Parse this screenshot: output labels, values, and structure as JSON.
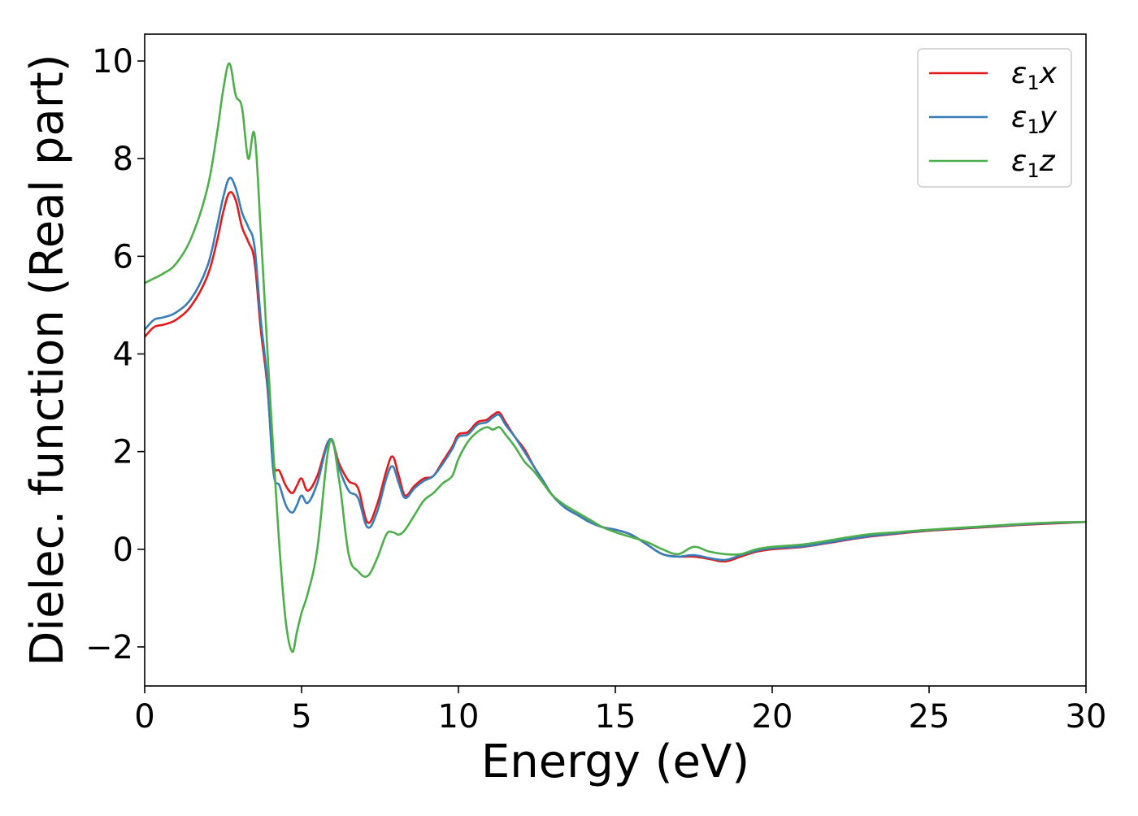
{
  "chart_data": {
    "type": "line",
    "title": "",
    "xlabel": "Energy (eV)",
    "ylabel": "Dielec. function (Real part)",
    "xlim": [
      0,
      30
    ],
    "ylim": [
      -2.8,
      10.55
    ],
    "xticks": [
      0,
      5,
      10,
      15,
      20,
      25,
      30
    ],
    "xtick_labels": [
      "0",
      "5",
      "10",
      "15",
      "20",
      "25",
      "30"
    ],
    "yticks": [
      -2,
      0,
      2,
      4,
      6,
      8,
      10
    ],
    "ytick_labels": [
      "−2",
      "0",
      "2",
      "4",
      "6",
      "8",
      "10"
    ],
    "grid": false,
    "legend_position": "top-right",
    "series": [
      {
        "name": "ε₁x",
        "symbol": "ε",
        "subscript": "1",
        "component": "x",
        "color": "#e41a1c",
        "x": [
          0,
          0.3,
          0.6,
          1.0,
          1.5,
          2.0,
          2.3,
          2.5,
          2.7,
          2.9,
          3.1,
          3.3,
          3.5,
          3.7,
          3.9,
          4.1,
          4.3,
          4.5,
          4.7,
          4.85,
          5.0,
          5.2,
          5.5,
          5.9,
          6.2,
          6.5,
          6.8,
          7.1,
          7.4,
          7.7,
          7.9,
          8.1,
          8.3,
          8.6,
          8.9,
          9.2,
          9.5,
          9.8,
          10.0,
          10.3,
          10.6,
          10.9,
          11.1,
          11.3,
          11.5,
          11.8,
          12.1,
          12.4,
          12.7,
          13.0,
          13.4,
          13.8,
          14.2,
          14.6,
          15.0,
          15.5,
          16.0,
          16.5,
          17.0,
          17.5,
          18.0,
          18.5,
          19.0,
          19.5,
          20.0,
          21.0,
          22.0,
          23.0,
          24.0,
          25.0,
          26.0,
          27.0,
          28.0,
          29.0,
          30.0
        ],
        "y": [
          4.35,
          4.55,
          4.6,
          4.7,
          5.0,
          5.6,
          6.3,
          6.9,
          7.3,
          7.15,
          6.6,
          6.3,
          5.9,
          4.5,
          3.4,
          1.8,
          1.6,
          1.3,
          1.15,
          1.3,
          1.45,
          1.2,
          1.5,
          2.25,
          1.75,
          1.4,
          1.25,
          0.55,
          0.9,
          1.6,
          1.9,
          1.5,
          1.1,
          1.3,
          1.45,
          1.5,
          1.8,
          2.1,
          2.35,
          2.4,
          2.6,
          2.65,
          2.75,
          2.8,
          2.6,
          2.3,
          2.05,
          1.7,
          1.4,
          1.1,
          0.85,
          0.7,
          0.55,
          0.45,
          0.4,
          0.3,
          0.1,
          -0.1,
          -0.15,
          -0.15,
          -0.2,
          -0.25,
          -0.15,
          -0.05,
          0.0,
          0.05,
          0.15,
          0.25,
          0.32,
          0.38,
          0.42,
          0.46,
          0.5,
          0.53,
          0.56
        ]
      },
      {
        "name": "ε₁y",
        "symbol": "ε",
        "subscript": "1",
        "component": "y",
        "color": "#377eb8",
        "x": [
          0,
          0.3,
          0.6,
          1.0,
          1.5,
          2.0,
          2.3,
          2.5,
          2.7,
          2.9,
          3.1,
          3.3,
          3.5,
          3.7,
          3.9,
          4.1,
          4.3,
          4.5,
          4.7,
          4.85,
          5.0,
          5.2,
          5.5,
          5.9,
          6.2,
          6.5,
          6.8,
          7.1,
          7.4,
          7.7,
          7.9,
          8.1,
          8.3,
          8.6,
          8.9,
          9.2,
          9.5,
          9.8,
          10.0,
          10.3,
          10.6,
          10.9,
          11.1,
          11.3,
          11.5,
          11.8,
          12.1,
          12.4,
          12.7,
          13.0,
          13.4,
          13.8,
          14.2,
          14.6,
          15.0,
          15.5,
          16.0,
          16.5,
          17.0,
          17.5,
          18.0,
          18.5,
          19.0,
          19.5,
          20.0,
          21.0,
          22.0,
          23.0,
          24.0,
          25.0,
          26.0,
          27.0,
          28.0,
          29.0,
          30.0
        ],
        "y": [
          4.5,
          4.7,
          4.75,
          4.85,
          5.15,
          5.8,
          6.6,
          7.2,
          7.6,
          7.4,
          6.9,
          6.6,
          6.2,
          4.7,
          3.5,
          1.6,
          1.3,
          0.9,
          0.75,
          0.9,
          1.1,
          0.95,
          1.35,
          2.25,
          1.65,
          1.2,
          1.05,
          0.45,
          0.75,
          1.45,
          1.7,
          1.35,
          1.05,
          1.25,
          1.4,
          1.5,
          1.75,
          2.05,
          2.3,
          2.35,
          2.55,
          2.6,
          2.7,
          2.75,
          2.55,
          2.3,
          2.0,
          1.7,
          1.4,
          1.1,
          0.85,
          0.7,
          0.55,
          0.45,
          0.4,
          0.3,
          0.1,
          -0.1,
          -0.15,
          -0.12,
          -0.18,
          -0.22,
          -0.12,
          -0.03,
          0.02,
          0.06,
          0.16,
          0.26,
          0.33,
          0.39,
          0.43,
          0.47,
          0.51,
          0.54,
          0.56
        ]
      },
      {
        "name": "ε₁z",
        "symbol": "ε",
        "subscript": "1",
        "component": "z",
        "color": "#4daf4a",
        "x": [
          0,
          0.3,
          0.6,
          1.0,
          1.5,
          2.0,
          2.3,
          2.5,
          2.7,
          2.9,
          3.1,
          3.3,
          3.5,
          3.7,
          3.9,
          4.1,
          4.3,
          4.5,
          4.7,
          4.85,
          5.0,
          5.2,
          5.5,
          5.9,
          6.2,
          6.5,
          6.8,
          7.1,
          7.4,
          7.7,
          7.9,
          8.1,
          8.3,
          8.6,
          8.9,
          9.2,
          9.5,
          9.8,
          10.0,
          10.3,
          10.6,
          10.9,
          11.1,
          11.3,
          11.5,
          11.8,
          12.1,
          12.4,
          12.7,
          13.0,
          13.4,
          13.8,
          14.2,
          14.6,
          15.0,
          15.5,
          16.0,
          16.5,
          17.0,
          17.5,
          18.0,
          18.5,
          19.0,
          19.5,
          20.0,
          21.0,
          22.0,
          23.0,
          24.0,
          25.0,
          26.0,
          27.0,
          28.0,
          29.0,
          30.0
        ],
        "y": [
          5.45,
          5.55,
          5.65,
          5.85,
          6.4,
          7.4,
          8.5,
          9.4,
          9.95,
          9.3,
          9.05,
          8.0,
          8.5,
          6.5,
          4.2,
          2.0,
          0.0,
          -1.5,
          -2.1,
          -1.7,
          -1.3,
          -0.9,
          0.0,
          2.2,
          1.4,
          -0.1,
          -0.45,
          -0.55,
          -0.2,
          0.3,
          0.35,
          0.3,
          0.4,
          0.7,
          1.0,
          1.15,
          1.35,
          1.5,
          1.85,
          2.2,
          2.4,
          2.5,
          2.45,
          2.5,
          2.35,
          2.1,
          1.8,
          1.6,
          1.35,
          1.1,
          0.9,
          0.75,
          0.6,
          0.45,
          0.35,
          0.25,
          0.15,
          0.0,
          -0.1,
          0.05,
          -0.05,
          -0.1,
          -0.1,
          0.0,
          0.05,
          0.1,
          0.2,
          0.3,
          0.35,
          0.4,
          0.44,
          0.48,
          0.52,
          0.55,
          0.56
        ]
      }
    ]
  }
}
